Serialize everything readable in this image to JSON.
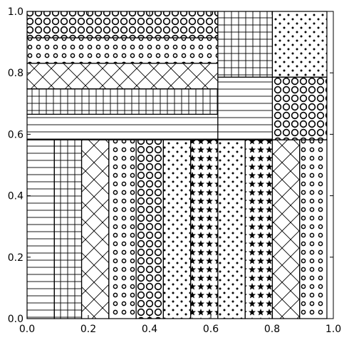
{
  "chart_data": {
    "type": "treemap",
    "xlim": [
      0.0,
      1.0
    ],
    "ylim": [
      0.0,
      1.0
    ],
    "x_ticks": [
      "0.0",
      "0.2",
      "0.4",
      "0.6",
      "0.8",
      "1.0"
    ],
    "y_ticks": [
      "0.0",
      "0.2",
      "0.4",
      "0.6",
      "0.8",
      "1.0"
    ],
    "grid": false,
    "legend": "none",
    "rects": [
      {
        "x": 0.0,
        "y": 0.0,
        "w": 0.089,
        "h": 0.582,
        "hatch": "hlines"
      },
      {
        "x": 0.089,
        "y": 0.0,
        "w": 0.089,
        "h": 0.582,
        "hatch": "grid"
      },
      {
        "x": 0.178,
        "y": 0.0,
        "w": 0.089,
        "h": 0.582,
        "hatch": "crosshatch"
      },
      {
        "x": 0.267,
        "y": 0.0,
        "w": 0.089,
        "h": 0.582,
        "hatch": "small-circles"
      },
      {
        "x": 0.356,
        "y": 0.0,
        "w": 0.089,
        "h": 0.582,
        "hatch": "large-circles"
      },
      {
        "x": 0.445,
        "y": 0.0,
        "w": 0.089,
        "h": 0.582,
        "hatch": "dots"
      },
      {
        "x": 0.534,
        "y": 0.0,
        "w": 0.089,
        "h": 0.582,
        "hatch": "stars"
      },
      {
        "x": 0.623,
        "y": 0.0,
        "w": 0.089,
        "h": 0.582,
        "hatch": "dots"
      },
      {
        "x": 0.712,
        "y": 0.0,
        "w": 0.089,
        "h": 0.582,
        "hatch": "stars"
      },
      {
        "x": 0.801,
        "y": 0.0,
        "w": 0.089,
        "h": 0.582,
        "hatch": "crosshatch"
      },
      {
        "x": 0.89,
        "y": 0.0,
        "w": 0.089,
        "h": 0.582,
        "hatch": "small-circles"
      },
      {
        "x": 0.0,
        "y": 0.582,
        "w": 0.623,
        "h": 0.083,
        "hatch": "hlines"
      },
      {
        "x": 0.0,
        "y": 0.665,
        "w": 0.623,
        "h": 0.083,
        "hatch": "grid"
      },
      {
        "x": 0.0,
        "y": 0.748,
        "w": 0.623,
        "h": 0.083,
        "hatch": "crosshatch"
      },
      {
        "x": 0.0,
        "y": 0.831,
        "w": 0.623,
        "h": 0.083,
        "hatch": "small-circles"
      },
      {
        "x": 0.0,
        "y": 0.914,
        "w": 0.623,
        "h": 0.086,
        "hatch": "large-circles"
      },
      {
        "x": 0.623,
        "y": 0.582,
        "w": 0.178,
        "h": 0.204,
        "hatch": "hlines"
      },
      {
        "x": 0.623,
        "y": 0.786,
        "w": 0.178,
        "h": 0.214,
        "hatch": "grid"
      },
      {
        "x": 0.801,
        "y": 0.582,
        "w": 0.178,
        "h": 0.204,
        "hatch": "large-circles"
      },
      {
        "x": 0.801,
        "y": 0.786,
        "w": 0.178,
        "h": 0.214,
        "hatch": "dots"
      }
    ]
  }
}
